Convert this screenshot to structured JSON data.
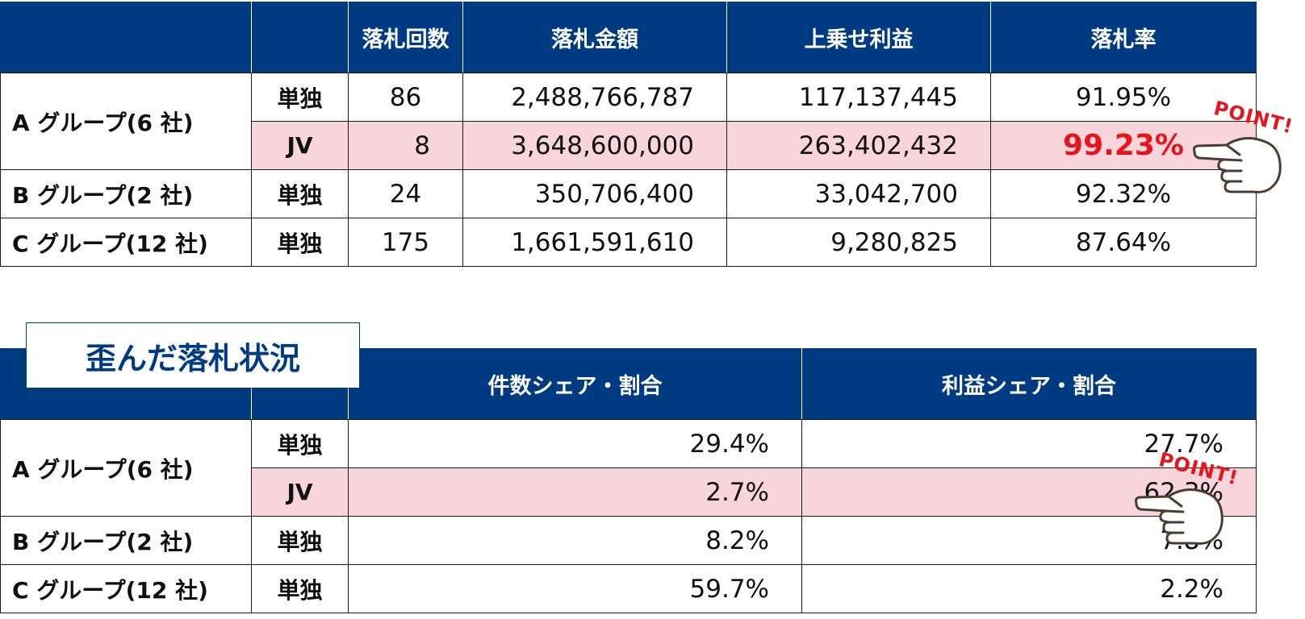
{
  "table1": {
    "headers": [
      "",
      "",
      "落札回数",
      "落札金額",
      "上乗せ利益",
      "落札率"
    ],
    "rows": [
      {
        "group": "A グループ(6 社)",
        "kind": "単独",
        "count": "86",
        "amount": "2,488,766,787",
        "profit": "117,137,445",
        "rate": "91.95%"
      },
      {
        "kind": "JV",
        "count": "8",
        "amount": "3,648,600,000",
        "profit": "263,402,432",
        "rate": "99.23%"
      },
      {
        "group": "B グループ(2 社)",
        "kind": "単独",
        "count": "24",
        "amount": "350,706,400",
        "profit": "33,042,700",
        "rate": "92.32%"
      },
      {
        "group": "C グループ(12 社)",
        "kind": "単独",
        "count": "175",
        "amount": "1,661,591,610",
        "profit": "9,280,825",
        "rate": "87.64%"
      }
    ]
  },
  "section_title": "歪んだ落札状況",
  "table2": {
    "headers": [
      "",
      "",
      "件数シェア・割合",
      "利益シェア・割合"
    ],
    "rows": [
      {
        "group": "A グループ(6 社)",
        "kind": "単独",
        "count_share": "29.4%",
        "profit_share": "27.7%"
      },
      {
        "kind": "JV",
        "count_share": "2.7%",
        "profit_share": "62.3%"
      },
      {
        "group": "B グループ(2 社)",
        "kind": "単独",
        "count_share": "8.2%",
        "profit_share": "7.8%"
      },
      {
        "group": "C グループ(12 社)",
        "kind": "単独",
        "count_share": "59.7%",
        "profit_share": "2.2%"
      }
    ]
  },
  "callouts": {
    "point_label": "POINT!",
    "hand_icon": "pointing-hand-icon"
  },
  "colors": {
    "header_bg": "#003b82",
    "highlight_row": "#f8d5da",
    "highlight_text": "#e8141d"
  }
}
